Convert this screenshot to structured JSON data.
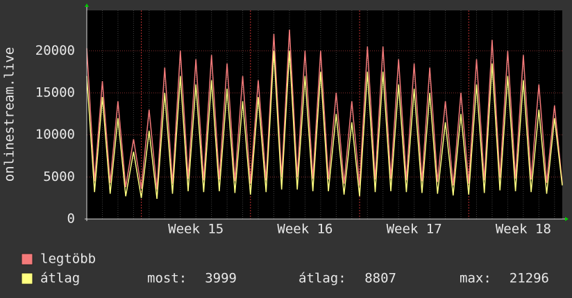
{
  "chart_data": {
    "type": "line",
    "y_label": "onlinestream.live",
    "categories": [
      null,
      null,
      null,
      null,
      null,
      null,
      null,
      null,
      null,
      null,
      null,
      null,
      null,
      null,
      "Week 15",
      null,
      null,
      null,
      null,
      null,
      null,
      null,
      null,
      null,
      null,
      null,
      null,
      null,
      "Week 16",
      null,
      null,
      null,
      null,
      null,
      null,
      null,
      null,
      null,
      null,
      null,
      null,
      null,
      "Week 17",
      null,
      null,
      null,
      null,
      null,
      null,
      null,
      null,
      null,
      null,
      null,
      null,
      null,
      "Week 18",
      null,
      null,
      null,
      null,
      null
    ],
    "series": [
      {
        "name": "legtöbb",
        "color": "#f47a7a",
        "values": [
          20300,
          4500,
          16400,
          4300,
          14000,
          3800,
          9500,
          3600,
          13000,
          3500,
          18000,
          4200,
          20000,
          4800,
          19000,
          4600,
          19500,
          4700,
          18500,
          4500,
          17000,
          4200,
          16500,
          4600,
          22000,
          5000,
          22500,
          5000,
          20000,
          4800,
          20000,
          4700,
          15000,
          4200,
          14000,
          4000,
          20500,
          4700,
          20500,
          4800,
          19000,
          4600,
          18500,
          4500,
          18000,
          4400,
          14000,
          4000,
          15000,
          4200,
          19000,
          4600,
          21300,
          4900,
          20000,
          4800,
          19500,
          4700,
          16000,
          4300,
          13500,
          4200
        ]
      },
      {
        "name": "átlag",
        "color": "#ffff80",
        "values": [
          17000,
          3200,
          14500,
          3000,
          12000,
          2700,
          8000,
          2500,
          10500,
          2400,
          15000,
          3000,
          17000,
          3300,
          16000,
          3200,
          16500,
          3300,
          15500,
          3100,
          14000,
          2900,
          14500,
          3200,
          20000,
          3500,
          20000,
          3500,
          17000,
          3300,
          17500,
          3300,
          12500,
          2900,
          11500,
          2700,
          17500,
          3200,
          17500,
          3300,
          16000,
          3200,
          15500,
          3100,
          15000,
          3000,
          11500,
          2800,
          12500,
          2900,
          16000,
          3100,
          18500,
          3400,
          17000,
          3300,
          16500,
          3200,
          13000,
          3000,
          12000,
          3999
        ]
      }
    ],
    "ylim": [
      0,
      24800
    ],
    "yticks": [
      0,
      5000,
      10000,
      15000,
      20000
    ],
    "grid": true,
    "legend_stats": [
      {
        "label": "most:",
        "value": 3999
      },
      {
        "label": "átlag:",
        "value": 8807
      },
      {
        "label": "max:",
        "value": 21296
      }
    ]
  }
}
